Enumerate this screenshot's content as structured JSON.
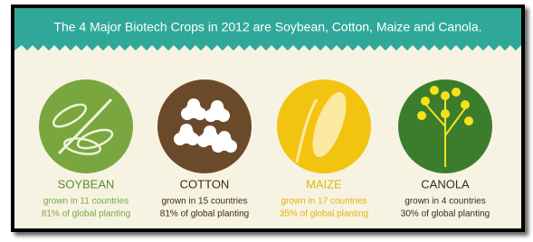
{
  "header": {
    "title": "The 4 Major Biotech Crops in 2012 are Soybean, Cotton, Maize and Canola."
  },
  "crops": [
    {
      "name": "SOYBEAN",
      "line1": "grown in 11 countries",
      "line2": "81% of global planting"
    },
    {
      "name": "COTTON",
      "line1": "grown in 15 countries",
      "line2": "81% of global planting"
    },
    {
      "name": "MAIZE",
      "line1": "grown in 17 countries",
      "line2": "35% of global planting"
    },
    {
      "name": "CANOLA",
      "line1": "grown in 4 countries",
      "line2": "30% of global planting"
    }
  ]
}
